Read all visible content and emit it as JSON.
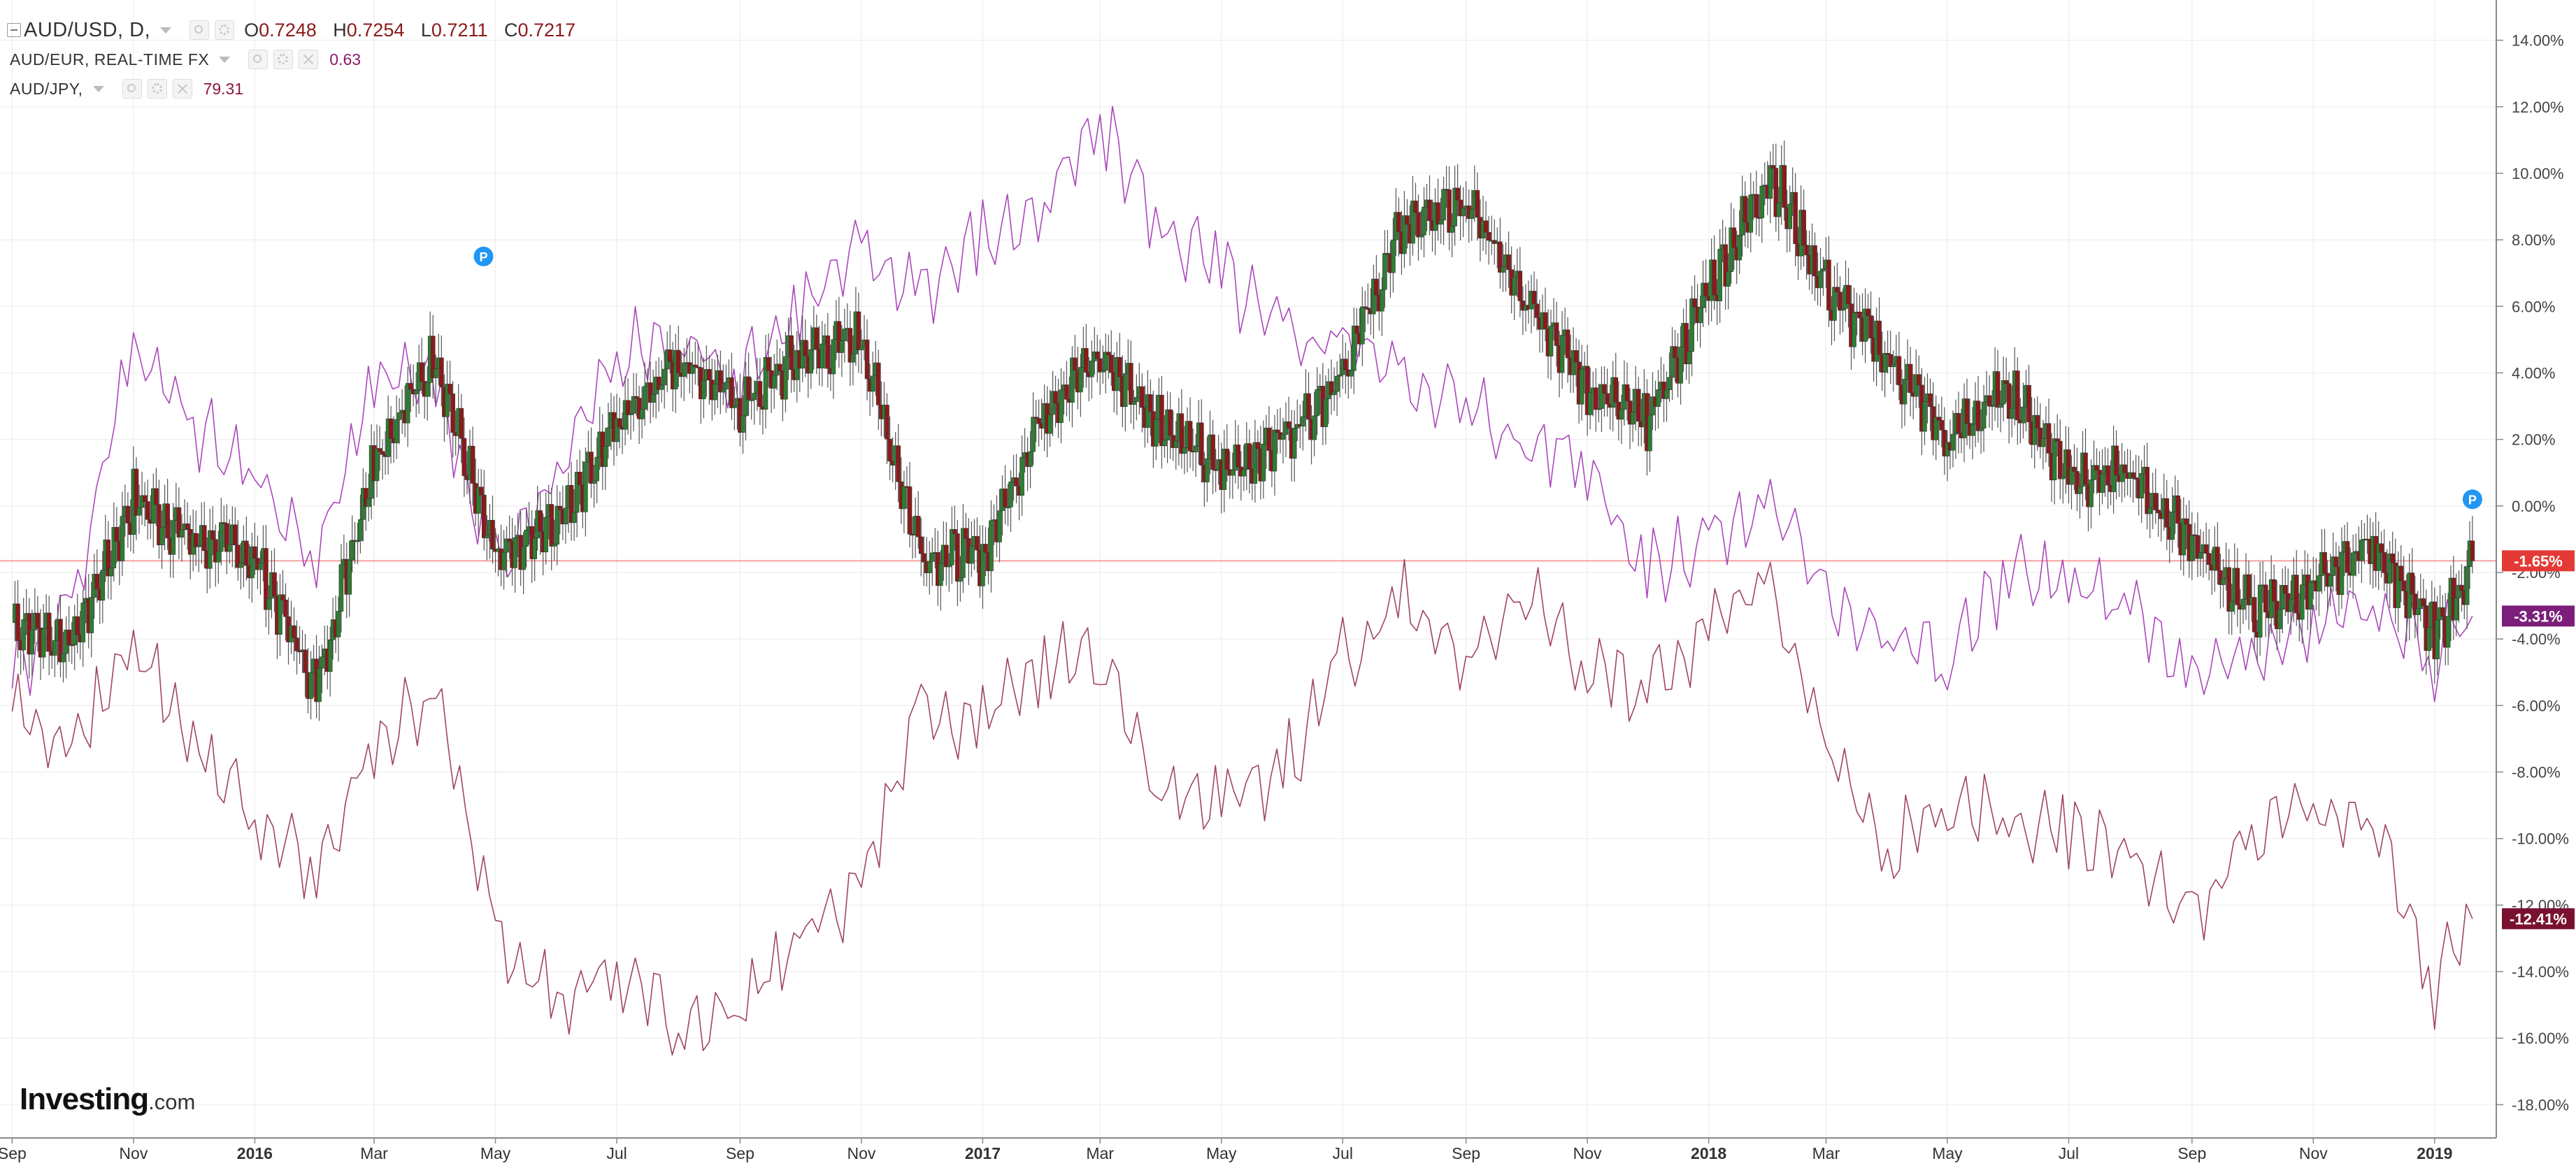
{
  "legend": {
    "main_symbol": "AUD/USD, D,",
    "ohlc": [
      {
        "label": "O",
        "value": "0.7248"
      },
      {
        "label": "H",
        "value": "0.7254"
      },
      {
        "label": "L",
        "value": "0.7211"
      },
      {
        "label": "C",
        "value": "0.7217"
      }
    ],
    "compare": [
      {
        "symbol": "AUD/EUR, REAL-TIME FX",
        "value": "0.63"
      },
      {
        "symbol": "AUD/JPY,",
        "value": "79.31"
      }
    ]
  },
  "logo": {
    "brand": "Investing",
    "tld": ".com"
  },
  "markers": [
    "P",
    "P"
  ],
  "colors": {
    "up": "#2e7d32",
    "down": "#8b1a1a",
    "eur_line": "#ab47bc",
    "jpy_line": "#a0455f",
    "baseline": "#f4a0a0",
    "badge_usd": "#e53935",
    "badge_eur": "#7b1f7b",
    "badge_jpy": "#7a1030",
    "marker": "#2196f3"
  },
  "chart_data": {
    "type": "line",
    "y_unit": "%",
    "ylim": [
      -19,
      15
    ],
    "y_ticks": [
      "14.00%",
      "12.00%",
      "10.00%",
      "8.00%",
      "6.00%",
      "4.00%",
      "2.00%",
      "0.00%",
      "-2.00%",
      "-4.00%",
      "-6.00%",
      "-8.00%",
      "-10.00%",
      "-12.00%",
      "-14.00%",
      "-16.00%",
      "-18.00%"
    ],
    "x_ticks": [
      "Sep",
      "Nov",
      "2016",
      "Mar",
      "May",
      "Jul",
      "Sep",
      "Nov",
      "2017",
      "Mar",
      "May",
      "Jul",
      "Sep",
      "Nov",
      "2018",
      "Mar",
      "May",
      "Jul",
      "Sep",
      "Nov",
      "2019"
    ],
    "x": [
      "2015-09-01",
      "2015-10-01",
      "2015-11-01",
      "2015-12-01",
      "2016-01-01",
      "2016-02-01",
      "2016-03-01",
      "2016-04-01",
      "2016-05-01",
      "2016-06-01",
      "2016-07-01",
      "2016-08-01",
      "2016-09-01",
      "2016-10-01",
      "2016-11-01",
      "2016-12-01",
      "2017-01-01",
      "2017-02-01",
      "2017-03-01",
      "2017-04-01",
      "2017-05-01",
      "2017-06-01",
      "2017-07-01",
      "2017-08-01",
      "2017-09-01",
      "2017-10-01",
      "2017-11-01",
      "2017-12-01",
      "2018-01-01",
      "2018-02-01",
      "2018-03-01",
      "2018-04-01",
      "2018-05-01",
      "2018-06-01",
      "2018-07-01",
      "2018-08-01",
      "2018-09-01",
      "2018-10-01",
      "2018-11-01",
      "2018-12-01",
      "2019-01-01",
      "2019-01-20"
    ],
    "series": [
      {
        "name": "AUD/USD",
        "style": "candlestick",
        "values": [
          -3.5,
          -4.2,
          0.2,
          -1.0,
          -1.5,
          -5.5,
          1.5,
          4.5,
          -1.8,
          -0.5,
          2.5,
          4.5,
          3.0,
          4.5,
          5.0,
          -1.5,
          -1.5,
          3.0,
          4.5,
          2.5,
          1.0,
          2.0,
          4.0,
          8.5,
          9.0,
          6.5,
          3.5,
          2.5,
          6.5,
          10.0,
          6.5,
          4.5,
          2.0,
          3.5,
          1.0,
          0.8,
          -1.0,
          -3.2,
          -2.5,
          -1.0,
          -4.0,
          -1.65
        ]
      },
      {
        "name": "AUD/EUR",
        "style": "line",
        "values": [
          -5.0,
          -3.0,
          5.0,
          2.5,
          1.0,
          -1.5,
          4.0,
          3.5,
          -2.0,
          1.0,
          4.5,
          5.0,
          4.0,
          6.0,
          7.5,
          6.5,
          8.0,
          9.0,
          11.5,
          8.5,
          7.0,
          5.0,
          5.0,
          4.0,
          3.0,
          2.0,
          1.5,
          -2.0,
          -1.0,
          0.0,
          -2.5,
          -4.0,
          -4.5,
          -2.0,
          -2.5,
          -3.0,
          -5.5,
          -4.5,
          -3.5,
          -3.0,
          -4.5,
          -3.31
        ]
      },
      {
        "name": "AUD/JPY",
        "style": "line",
        "values": [
          -6.0,
          -7.5,
          -4.0,
          -7.0,
          -9.5,
          -11.0,
          -7.0,
          -6.0,
          -12.5,
          -15.0,
          -14.0,
          -15.5,
          -15.0,
          -13.0,
          -11.5,
          -6.0,
          -6.5,
          -4.5,
          -5.0,
          -8.5,
          -9.0,
          -8.0,
          -4.5,
          -3.0,
          -4.5,
          -2.5,
          -5.0,
          -5.5,
          -3.5,
          -2.0,
          -7.5,
          -10.5,
          -9.0,
          -9.5,
          -10.0,
          -10.5,
          -12.5,
          -10.0,
          -9.0,
          -9.5,
          -14.5,
          -12.41
        ]
      }
    ],
    "last_value_badges": [
      "-1.65%",
      "-3.31%",
      "-12.41%"
    ]
  }
}
